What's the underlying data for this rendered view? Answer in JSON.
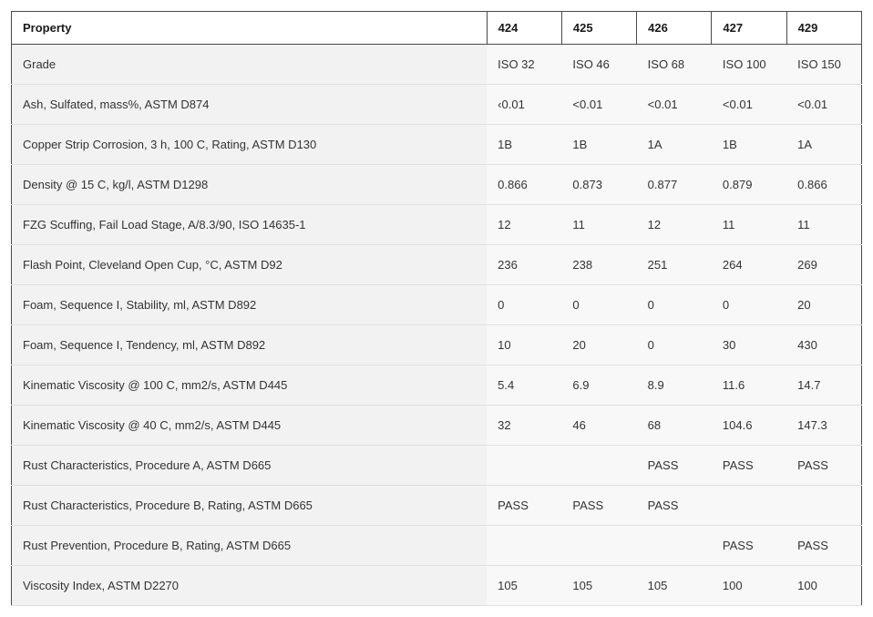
{
  "table": {
    "header_bg": "#ffffff",
    "header_border": "#4a4a4a",
    "row_border": "#e0e0e0",
    "label_bg": "#f2f2f2",
    "value_bg": "#f8f8f8",
    "text_color": "#333333",
    "header_font_weight": 700,
    "font_size_pt": 10,
    "columns": [
      "Property",
      "424",
      "425",
      "426",
      "427",
      "429"
    ],
    "rows": [
      [
        "Grade",
        "ISO 32",
        "ISO 46",
        "ISO 68",
        "ISO 100",
        "ISO 150"
      ],
      [
        "Ash, Sulfated, mass%, ASTM D874",
        "‹0.01",
        "<0.01",
        "<0.01",
        "<0.01",
        "<0.01"
      ],
      [
        "Copper Strip Corrosion, 3 h, 100 C, Rating, ASTM D130",
        "1B",
        "1B",
        "1A",
        "1B",
        "1A"
      ],
      [
        "Density @ 15 C, kg/l, ASTM D1298",
        "0.866",
        "0.873",
        "0.877",
        "0.879",
        "0.866"
      ],
      [
        "FZG Scuffing, Fail Load Stage, A/8.3/90, ISO 14635-1",
        "12",
        "11",
        "12",
        "11",
        "11"
      ],
      [
        "Flash Point, Cleveland Open Cup, °C, ASTM D92",
        "236",
        "238",
        "251",
        "264",
        "269"
      ],
      [
        "Foam, Sequence I, Stability, ml, ASTM D892",
        "0",
        "0",
        "0",
        "0",
        "20"
      ],
      [
        "Foam, Sequence I, Tendency, ml, ASTM D892",
        "10",
        "20",
        "0",
        "30",
        "430"
      ],
      [
        "Kinematic Viscosity @ 100 C, mm2/s, ASTM D445",
        "5.4",
        "6.9",
        "8.9",
        "11.6",
        "14.7"
      ],
      [
        "Kinematic Viscosity @ 40 C, mm2/s, ASTM D445",
        "32",
        "46",
        "68",
        "104.6",
        "147.3"
      ],
      [
        "Rust Characteristics, Procedure A, ASTM D665",
        "",
        "",
        "PASS",
        "PASS",
        "PASS"
      ],
      [
        "Rust Characteristics, Procedure B, Rating, ASTM D665",
        "PASS",
        "PASS",
        "PASS",
        "",
        ""
      ],
      [
        "Rust Prevention, Procedure B, Rating, ASTM D665",
        "",
        "",
        "",
        "PASS",
        "PASS"
      ],
      [
        "Viscosity Index, ASTM D2270",
        "105",
        "105",
        "105",
        "100",
        "100"
      ]
    ]
  }
}
